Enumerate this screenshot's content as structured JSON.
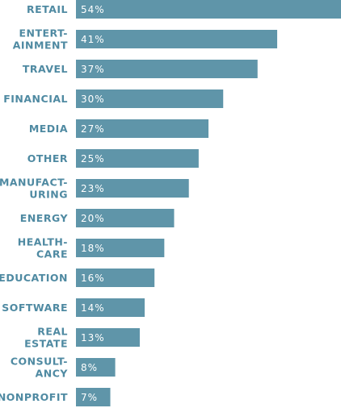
{
  "colors": {
    "bar": "#5f95a9",
    "category_text": "#4f8aa2",
    "value_text": "#ffffff"
  },
  "chart_data": {
    "type": "bar",
    "orientation": "horizontal",
    "categories": [
      [
        "RETAIL"
      ],
      [
        "ENTERT-",
        "AINMENT"
      ],
      [
        "TRAVEL"
      ],
      [
        "FINANCIAL"
      ],
      [
        "MEDIA"
      ],
      [
        "OTHER"
      ],
      [
        "MANUFACT-",
        "URING"
      ],
      [
        "ENERGY"
      ],
      [
        "HEALTH-",
        "CARE"
      ],
      [
        "EDUCATION"
      ],
      [
        "SOFTWARE"
      ],
      [
        "REAL",
        "ESTATE"
      ],
      [
        "CONSULT-",
        "ANCY"
      ],
      [
        "NONPROFIT"
      ]
    ],
    "values": [
      54,
      41,
      37,
      30,
      27,
      25,
      23,
      20,
      18,
      16,
      14,
      13,
      8,
      7
    ],
    "value_labels": [
      "54%",
      "41%",
      "37%",
      "30%",
      "27%",
      "25%",
      "23%",
      "20%",
      "18%",
      "16%",
      "14%",
      "13%",
      "8%",
      "7%"
    ],
    "xlim": [
      0,
      54
    ],
    "grid": false,
    "legend": "none"
  }
}
